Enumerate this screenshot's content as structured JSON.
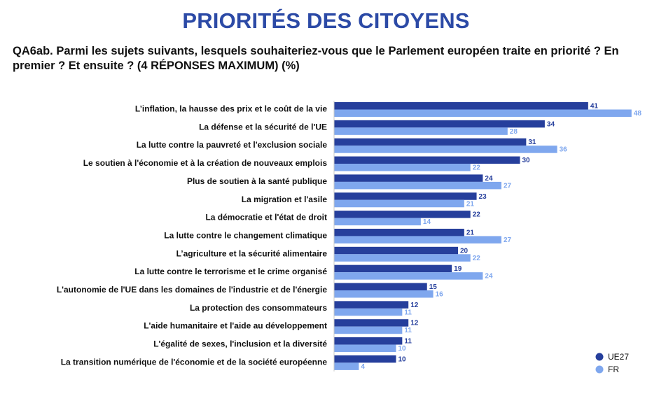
{
  "chart_data": {
    "type": "bar",
    "orientation": "horizontal",
    "title": "PRIORITÉS DES CITOYENS",
    "subtitle": "QA6ab. Parmi les sujets suivants, lesquels souhaiteriez-vous que le Parlement européen traite en priorité ? En premier ? Et ensuite ? (4 RÉPONSES MAXIMUM) (%)",
    "categories": [
      "L’inflation, la hausse des prix et le coût de la vie",
      "La défense et la sécurité de l'UE",
      "La lutte contre la pauvreté et l'exclusion sociale",
      "Le soutien à l'économie et à la création de nouveaux emplois",
      "Plus de soutien à la santé publique",
      "La migration et l'asile",
      "La démocratie et l'état de droit",
      "La lutte contre le changement climatique",
      "L’agriculture et la sécurité alimentaire",
      "La lutte contre le terrorisme et le crime organisé",
      "L'autonomie de l'UE dans les domaines de l'industrie et de l'énergie",
      "La protection des consommateurs",
      "L'aide humanitaire et l'aide au développement",
      "L'égalité de sexes, l'inclusion et la diversité",
      "La transition numérique de l'économie et de la société européenne"
    ],
    "series": [
      {
        "name": "UE27",
        "color": "#263f9c",
        "values": [
          41,
          34,
          31,
          30,
          24,
          23,
          22,
          21,
          20,
          19,
          15,
          12,
          12,
          11,
          10
        ]
      },
      {
        "name": "FR",
        "color": "#7fa7ee",
        "values": [
          48,
          28,
          36,
          22,
          27,
          21,
          14,
          27,
          22,
          24,
          16,
          11,
          11,
          10,
          4
        ]
      }
    ],
    "data_labels": true,
    "legend": "bottom-right",
    "grid": false,
    "xlim": [
      0,
      50
    ]
  }
}
